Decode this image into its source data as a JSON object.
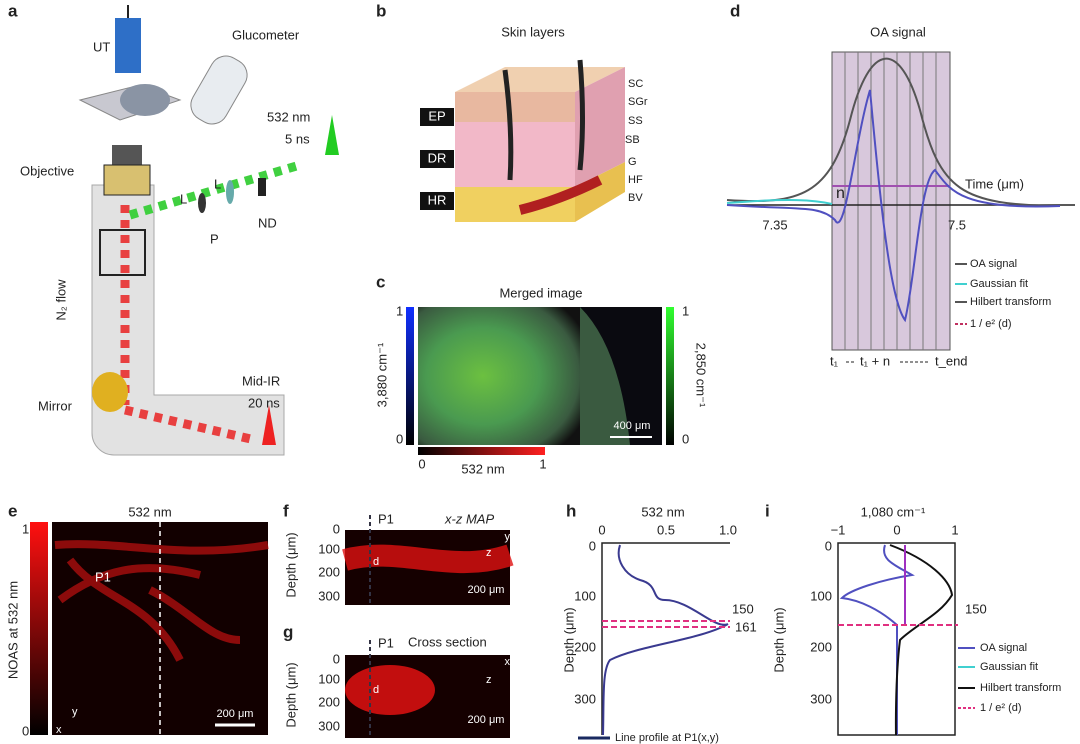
{
  "panel_a": {
    "label": "a",
    "ut": "UT",
    "glucometer": "Glucometer",
    "pump": [
      "532 nm",
      "5 ns"
    ],
    "objective": "Objective",
    "lenses": [
      "L",
      "L"
    ],
    "polarizer": "P",
    "filter": "ND",
    "flow": "N₂ flow",
    "mirror": "Mirror",
    "probe": [
      "Mid-IR",
      "20 ns"
    ]
  },
  "panel_b": {
    "label": "b",
    "title": "Skin layers",
    "regions": [
      "EP",
      "DR",
      "HR"
    ],
    "layers": [
      "SC",
      "SGr",
      "SS",
      "SB",
      "G",
      "HF",
      "BV"
    ]
  },
  "panel_c": {
    "label": "c",
    "title": "Merged image",
    "left_bar": {
      "max": "1",
      "min": "0",
      "label": "3,880 cm⁻¹"
    },
    "right_bar": {
      "max": "1",
      "min": "0",
      "label": "2,850 cm⁻¹"
    },
    "bottom_bar": {
      "min": "0",
      "max": "1",
      "label": "532 nm"
    },
    "scale": "400 μm"
  },
  "panel_d": {
    "label": "d",
    "title": "OA signal",
    "x_label": "Time (μm)",
    "xticks": [
      "7.35",
      "7.5"
    ],
    "window": "n",
    "legend": [
      "OA signal",
      "Gaussian fit",
      "Hilbert transform",
      "1 / e² (d)"
    ],
    "steps": [
      "t₁",
      "t₁ + n",
      "t_end"
    ]
  },
  "panel_e": {
    "label": "e",
    "title": "532 nm",
    "bar": {
      "max": "1",
      "min": "0",
      "label": "NOAS at 532 nm"
    },
    "point": "P1",
    "axes": [
      "y",
      "x"
    ],
    "scale": "200 μm"
  },
  "panel_f": {
    "label": "f",
    "point": "P1",
    "title": "x-z MAP",
    "y_label": "Depth (μm)",
    "yticks": [
      "0",
      "100",
      "200",
      "300"
    ],
    "marker": "d",
    "axes": [
      "y",
      "z"
    ],
    "scale": "200 μm"
  },
  "panel_g": {
    "label": "g",
    "point": "P1",
    "title": "Cross section",
    "y_label": "Depth (μm)",
    "yticks": [
      "0",
      "100",
      "200",
      "300"
    ],
    "marker": "d",
    "axes": [
      "x",
      "z"
    ],
    "scale": "200 μm"
  },
  "panel_h": {
    "label": "h",
    "title": "532 nm",
    "xticks": [
      "0",
      "0.5",
      "1.0"
    ],
    "yticks": [
      "0",
      "100",
      "200",
      "300"
    ],
    "y_label": "Depth (μm)",
    "marks": [
      "150",
      "161"
    ],
    "legend": "Line profile at P1(x,y)"
  },
  "panel_i": {
    "label": "i",
    "title": "1,080 cm⁻¹",
    "xticks": [
      "−1",
      "0",
      "1"
    ],
    "yticks": [
      "0",
      "100",
      "200",
      "300"
    ],
    "y_label": "Depth (μm)",
    "mark": "150",
    "legend": [
      "OA signal",
      "Gaussian fit",
      "Hilbert transform",
      "1 / e² (d)"
    ]
  }
}
